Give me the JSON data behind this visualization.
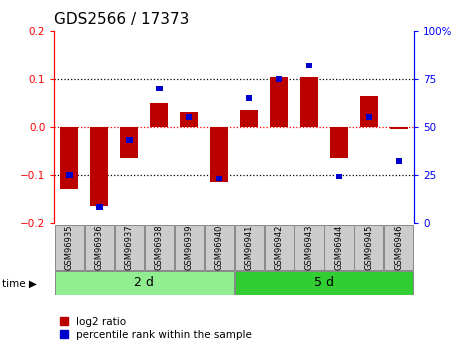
{
  "title": "GDS2566 / 17373",
  "samples": [
    "GSM96935",
    "GSM96936",
    "GSM96937",
    "GSM96938",
    "GSM96939",
    "GSM96940",
    "GSM96941",
    "GSM96942",
    "GSM96943",
    "GSM96944",
    "GSM96945",
    "GSM96946"
  ],
  "log2_ratio": [
    -0.13,
    -0.165,
    -0.065,
    0.05,
    0.03,
    -0.115,
    0.035,
    0.105,
    0.105,
    -0.065,
    0.065,
    -0.005
  ],
  "percentile_rank": [
    25,
    8,
    43,
    70,
    55,
    23,
    65,
    75,
    82,
    24,
    55,
    32
  ],
  "groups": [
    {
      "label": "2 d",
      "start": 0,
      "end": 6,
      "color": "#90EE90"
    },
    {
      "label": "5 d",
      "start": 6,
      "end": 12,
      "color": "#32CD32"
    }
  ],
  "bar_color_red": "#BB0000",
  "bar_color_blue": "#0000CC",
  "ylim": [
    -0.2,
    0.2
  ],
  "y2lim": [
    0,
    100
  ],
  "yticks": [
    -0.2,
    -0.1,
    0,
    0.1,
    0.2
  ],
  "y2ticks": [
    0,
    25,
    50,
    75,
    100
  ],
  "dotted_lines_black": [
    -0.1,
    0.1
  ],
  "dotted_line_red": 0.0,
  "bar_width": 0.6,
  "blue_bar_width": 0.22,
  "blue_bar_height": 0.012,
  "legend_red": "log2 ratio",
  "legend_blue": "percentile rank within the sample",
  "title_fontsize": 11,
  "tick_fontsize": 7.5,
  "sample_fontsize": 6,
  "group_fontsize": 9,
  "legend_fontsize": 7.5,
  "group_colors": [
    "#90EE90",
    "#32CD32"
  ]
}
